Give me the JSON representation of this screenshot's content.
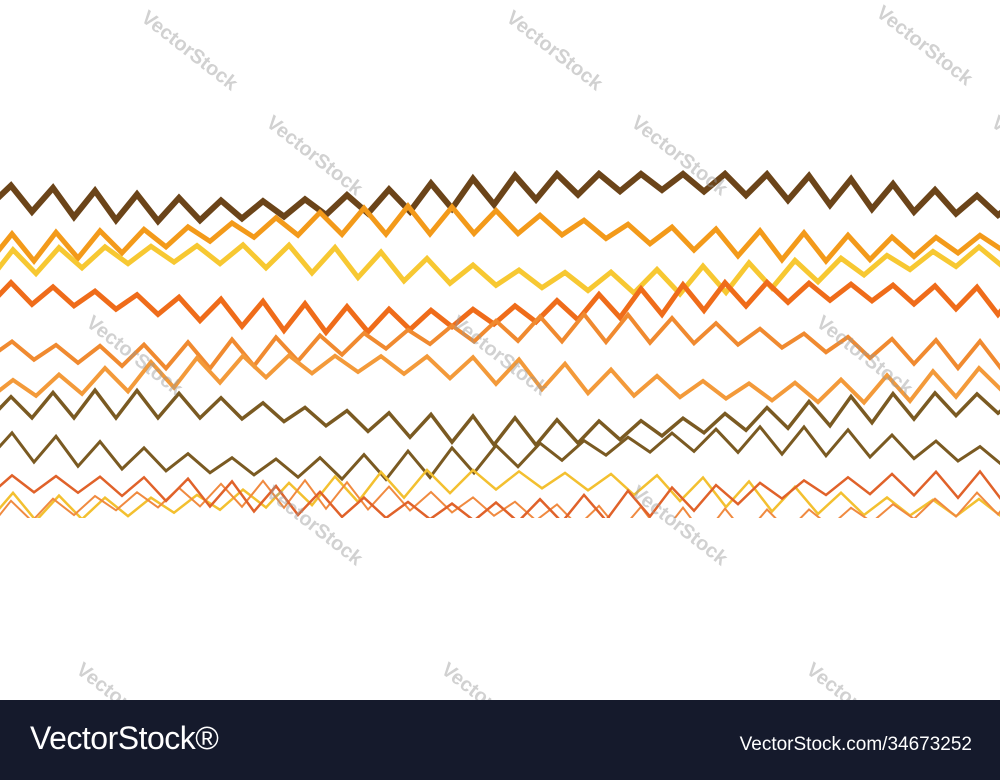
{
  "watermark": "VectorStock",
  "footer": {
    "logo": "VectorStock®",
    "link": "VectorStock.com/34673252"
  }
}
